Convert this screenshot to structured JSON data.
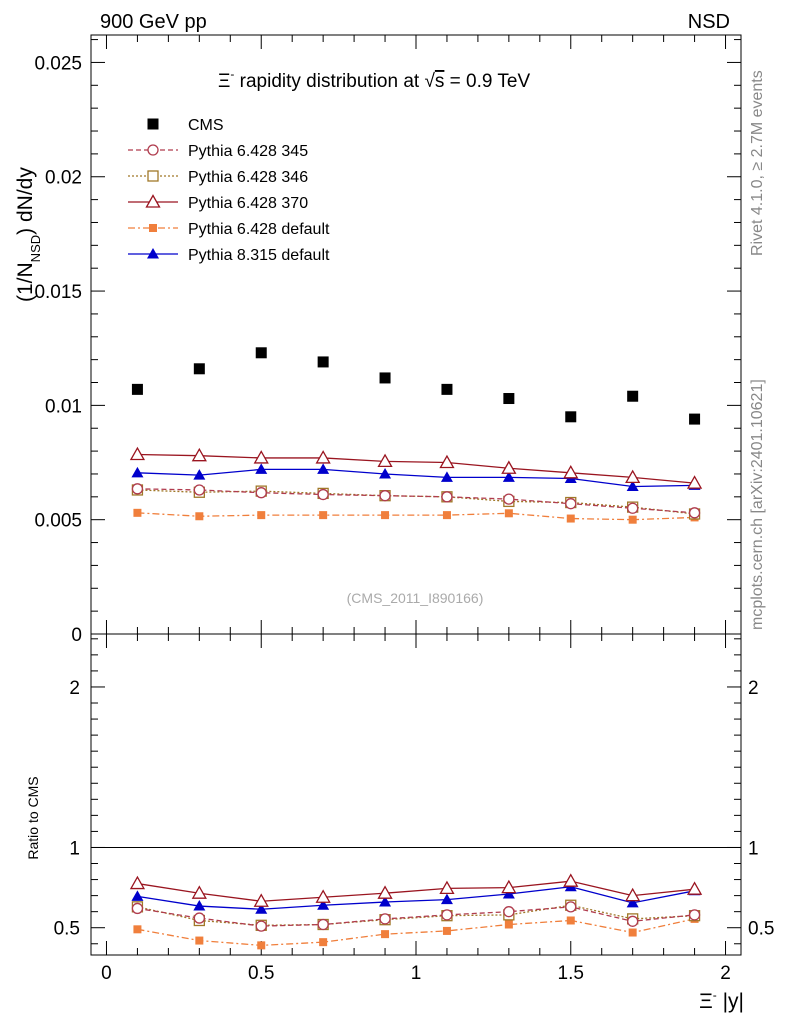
{
  "header": {
    "left": "900 GeV pp",
    "right": "NSD"
  },
  "side_labels": {
    "rivet": "Rivet 4.1.0, ≥ 2.7M events",
    "mcplots": "mcplots.cern.ch [arXiv:2401.10621]"
  },
  "chart_data": {
    "type": "scatter",
    "title_prefix": "Ξ",
    "title_sup": "-",
    "title_main": " rapidity distribution at ",
    "title_sqrt": "s",
    "title_suffix": " = 0.9 TeV",
    "watermark": "(CMS_2011_I890166)",
    "ylabel_main": {
      "part1": "(1/N",
      "sub": "NSD",
      "part2": ") dN/dy"
    },
    "ylabel_ratio": "Ratio to CMS",
    "xlabel_symbol": "Ξ",
    "xlabel_sup": "-",
    "xlabel_rest": " |y|",
    "xlim": [
      -0.05,
      2.05
    ],
    "ylim_main": [
      0,
      0.0262
    ],
    "ylim_ratio": [
      0.33,
      2.33
    ],
    "x_ticks": [
      0,
      0.5,
      1,
      1.5,
      2
    ],
    "x_tick_labels": [
      "0",
      "0.5",
      "1",
      "1.5",
      "2"
    ],
    "y_ticks_main": [
      0,
      0.005,
      0.01,
      0.015,
      0.02,
      0.025
    ],
    "y_tick_labels_main": [
      "0",
      "0.005",
      "0.01",
      "0.015",
      "0.02",
      "0.025"
    ],
    "y_ticks_ratio": [
      0.5,
      1,
      2
    ],
    "y_tick_labels_ratio": [
      "0.5",
      "1",
      "2"
    ],
    "x": [
      0.1,
      0.3,
      0.5,
      0.7,
      0.9,
      1.1,
      1.3,
      1.5,
      1.7,
      1.9
    ],
    "series": [
      {
        "name": "CMS",
        "color": "#000000",
        "marker": "square-filled",
        "line": "none",
        "values": [
          0.0107,
          0.0116,
          0.0123,
          0.0119,
          0.0112,
          0.0107,
          0.0103,
          0.0095,
          0.0104,
          0.0094
        ]
      },
      {
        "name": "Pythia 6.428 345",
        "color": "#b03c4e",
        "marker": "circle-open",
        "line": "dashed",
        "values": [
          0.00635,
          0.0063,
          0.00618,
          0.0061,
          0.00605,
          0.006,
          0.0059,
          0.0057,
          0.0055,
          0.0053
        ],
        "ratio": [
          0.62,
          0.56,
          0.51,
          0.52,
          0.555,
          0.58,
          0.6,
          0.63,
          0.54,
          0.58
        ]
      },
      {
        "name": "Pythia 6.428 346",
        "color": "#a07828",
        "marker": "square-open",
        "line": "dotted",
        "values": [
          0.0063,
          0.0062,
          0.00625,
          0.00615,
          0.00605,
          0.006,
          0.0058,
          0.00575,
          0.00555,
          0.00525
        ],
        "ratio": [
          0.63,
          0.545,
          0.515,
          0.52,
          0.55,
          0.575,
          0.58,
          0.64,
          0.555,
          0.575
        ]
      },
      {
        "name": "Pythia 6.428 370",
        "color": "#9a1520",
        "marker": "triangle-open",
        "line": "solid",
        "values": [
          0.00785,
          0.0078,
          0.0077,
          0.0077,
          0.00755,
          0.0075,
          0.00725,
          0.00705,
          0.00685,
          0.0066
        ],
        "ratio": [
          0.775,
          0.715,
          0.665,
          0.69,
          0.715,
          0.745,
          0.75,
          0.79,
          0.7,
          0.74
        ]
      },
      {
        "name": "Pythia 6.428 default",
        "color": "#f07f3c",
        "marker": "square-filled-small",
        "line": "dashdot",
        "values": [
          0.0053,
          0.00515,
          0.0052,
          0.0052,
          0.0052,
          0.0052,
          0.00528,
          0.00505,
          0.005,
          0.0051
        ],
        "ratio": [
          0.49,
          0.42,
          0.39,
          0.41,
          0.46,
          0.48,
          0.52,
          0.545,
          0.47,
          0.555
        ]
      },
      {
        "name": "Pythia 8.315 default",
        "color": "#0000cc",
        "marker": "triangle-filled",
        "line": "solid",
        "values": [
          0.00705,
          0.00695,
          0.0072,
          0.0072,
          0.007,
          0.00685,
          0.00685,
          0.0068,
          0.00645,
          0.0065
        ],
        "ratio": [
          0.695,
          0.635,
          0.615,
          0.64,
          0.66,
          0.675,
          0.71,
          0.755,
          0.655,
          0.73
        ]
      }
    ]
  }
}
